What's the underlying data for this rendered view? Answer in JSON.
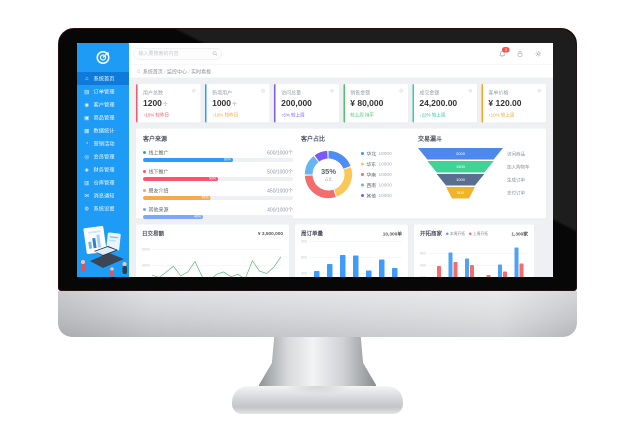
{
  "monitor": {
    "type": "desktop-monitor-mockup"
  },
  "sidebar": {
    "colors": {
      "bg": "#1E9BF5",
      "active": "#0E7BDB"
    },
    "logo_icon": "target-logo",
    "items": [
      {
        "label": "系统首页",
        "icon": "home",
        "active": true
      },
      {
        "label": "订单管理",
        "icon": "orders",
        "active": false
      },
      {
        "label": "客户管理",
        "icon": "customers",
        "active": false
      },
      {
        "label": "商品管理",
        "icon": "products",
        "active": false
      },
      {
        "label": "数据统计",
        "icon": "stats",
        "active": false
      },
      {
        "label": "营销活动",
        "icon": "marketing",
        "active": false
      },
      {
        "label": "会员管理",
        "icon": "members",
        "active": false
      },
      {
        "label": "财务管理",
        "icon": "finance",
        "active": false
      },
      {
        "label": "仓库管理",
        "icon": "warehouse",
        "active": false
      },
      {
        "label": "消息通知",
        "icon": "messages",
        "active": false
      },
      {
        "label": "系统设置",
        "icon": "settings",
        "active": false
      }
    ]
  },
  "icons": {
    "home": "⌂",
    "orders": "▤",
    "customers": "◉",
    "products": "▣",
    "stats": "▦",
    "marketing": "◔",
    "members": "◎",
    "finance": "◈",
    "warehouse": "▥",
    "messages": "✉",
    "settings": "⚙"
  },
  "header": {
    "search_placeholder": "输入要搜索的内容",
    "notification_count": "3"
  },
  "breadcrumb": [
    "系统首页",
    "监控中心",
    "实时看板"
  ],
  "stat_cards": [
    {
      "title": "用户总数",
      "value": "1200",
      "unit": "个",
      "sub": "↑10% 较昨日",
      "accent": "#f7566d",
      "sub_color": "#f7566d"
    },
    {
      "title": "新增用户",
      "value": "1000",
      "unit": "个",
      "sub": "↑10% 较昨日",
      "accent": "#2d9cf8",
      "sub_color": "#f0a732"
    },
    {
      "title": "访问总量",
      "value": "200,000",
      "unit": "",
      "sub": "↑5% 较上周",
      "accent": "#7b5bf5",
      "sub_color": "#7b5bf5"
    },
    {
      "title": "销售金额",
      "value": "¥ 80,000",
      "unit": "",
      "sub": "较上周 持平",
      "accent": "#4fc46f",
      "sub_color": "#4fc46f"
    },
    {
      "title": "成交金额",
      "value": "24,200.00",
      "unit": "",
      "sub": "↓22% 较上周",
      "accent": "#35d0a5",
      "sub_color": "#35c08f"
    },
    {
      "title": "客单价格",
      "value": "¥ 120.00",
      "unit": "",
      "sub": "↑10% 较上周",
      "accent": "#f5a623",
      "sub_color": "#f5a623"
    }
  ],
  "chart_data": [
    {
      "id": "customer-sources",
      "type": "bar",
      "subtype": "progress",
      "title": "客户来源",
      "rows": [
        {
          "label": "线上推广",
          "text": "600/1000个",
          "percent": 60,
          "percent_label": "60%",
          "color": "#2d9cf8"
        },
        {
          "label": "线下推广",
          "text": "500/1000个",
          "percent": 50,
          "percent_label": "50%",
          "color": "#f7566d"
        },
        {
          "label": "朋友介绍",
          "text": "450/1000个",
          "percent": 45,
          "percent_label": "45%",
          "color": "#f7a94c"
        },
        {
          "label": "其他来源",
          "text": "400/1000个",
          "percent": 40,
          "percent_label": "40%",
          "color": "#7da7f8"
        }
      ]
    },
    {
      "id": "customer-share",
      "type": "pie",
      "title": "客户占比",
      "center_value": "35%",
      "center_label": "占比",
      "legend_position": "right",
      "segments": [
        {
          "label": "华北",
          "value": "10000",
          "percent": 20,
          "color": "#4f8df6"
        },
        {
          "label": "华东",
          "value": "10000",
          "percent": 25,
          "color": "#fac858"
        },
        {
          "label": "华南",
          "value": "10000",
          "percent": 30,
          "color": "#f56c6c"
        },
        {
          "label": "西南",
          "value": "10000",
          "percent": 15,
          "color": "#63b6f0"
        },
        {
          "label": "其他",
          "value": "10000",
          "percent": 10,
          "color": "#7a5af8"
        }
      ]
    },
    {
      "id": "trade-funnel",
      "type": "funnel",
      "title": "交易漏斗",
      "layers": [
        {
          "label": "访问商品",
          "value": "2000",
          "color": "#4e87ee",
          "top": 100,
          "bottom": 78
        },
        {
          "label": "加入购物车",
          "value": "1500",
          "color": "#3fd495",
          "top": 78,
          "bottom": 56
        },
        {
          "label": "生成订单",
          "value": "1000",
          "color": "#5a6f8f",
          "top": 56,
          "bottom": 34
        },
        {
          "label": "支付订单",
          "value": "500",
          "color": "#f0b429",
          "top": 34,
          "bottom": 20
        }
      ]
    },
    {
      "id": "daily-turnover",
      "type": "line",
      "title": "日交易额",
      "value_label": "¥ 3,500,000",
      "color": "#5fb878",
      "yticks": [
        5000,
        4000,
        3000
      ],
      "ylim": [
        2500,
        5500
      ],
      "grid": true,
      "values": [
        3400,
        3250,
        3600,
        3950,
        3350,
        3600,
        4250,
        3300,
        3050,
        3450,
        3600,
        3300,
        3450,
        3150,
        4300,
        3650,
        3500,
        3900,
        4550
      ]
    },
    {
      "id": "weekly-orders",
      "type": "bar",
      "title": "周订单量",
      "value_label": "10,300单",
      "color": "#3f9bfa",
      "yticks": [
        900,
        600,
        300
      ],
      "ylim": [
        0,
        900
      ],
      "grid": true,
      "values": [
        350,
        480,
        650,
        640,
        360,
        560,
        400
      ]
    },
    {
      "id": "merchant-expansion",
      "type": "bar",
      "subtype": "grouped",
      "title": "开拓商家",
      "value_label": "1,300家",
      "yticks": [
        600,
        400,
        200
      ],
      "ylim": [
        0,
        800
      ],
      "grid": true,
      "legend_position": "top",
      "series": [
        {
          "name": "本周开拓",
          "color": "#4ea3f7",
          "values": [
            150,
            620,
            520,
            180,
            420,
            700
          ]
        },
        {
          "name": "上周开拓",
          "color": "#f56c6c",
          "values": [
            390,
            460,
            410,
            240,
            300,
            430
          ]
        }
      ]
    }
  ]
}
